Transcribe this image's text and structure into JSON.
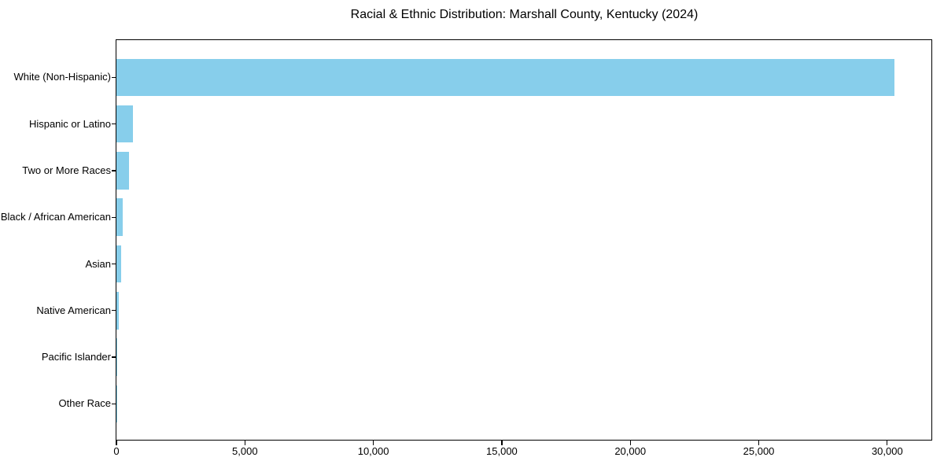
{
  "title": "Racial & Ethnic Distribution: Marshall County, Kentucky (2024)",
  "chart_data": {
    "type": "bar",
    "orientation": "horizontal",
    "title": "Racial & Ethnic Distribution: Marshall County, Kentucky (2024)",
    "categories": [
      "White (Non-Hispanic)",
      "Hispanic or Latino",
      "Two or More Races",
      "Black / African American",
      "Asian",
      "Native American",
      "Pacific Islander",
      "Other Race"
    ],
    "values": [
      30280,
      650,
      500,
      235,
      170,
      90,
      20,
      10
    ],
    "xlabel": "",
    "ylabel": "",
    "xlim": [
      0,
      31750
    ],
    "xtick_values": [
      0,
      5000,
      10000,
      15000,
      20000,
      25000,
      30000
    ],
    "xtick_labels": [
      "0",
      "5,000",
      "10,000",
      "15,000",
      "20,000",
      "25,000",
      "30,000"
    ],
    "bar_color": "#87CEEB",
    "background_color": "#FFFFFF",
    "axis_color": "#000000",
    "grid": false,
    "legend_position": "none",
    "value_order": "descending_top_to_bottom"
  }
}
